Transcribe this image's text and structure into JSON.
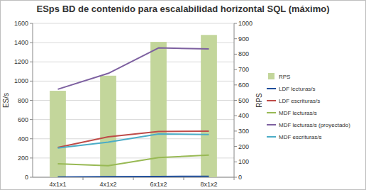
{
  "chart_data": {
    "type": "bar",
    "title": "ESps BD de contenido para escalabilidad horizontal SQL (máximo)",
    "y_label": "ES/s",
    "y2_label": "RPS",
    "categories": [
      "4x1x1",
      "4x1x2",
      "6x1x2",
      "8x1x2"
    ],
    "series": [
      {
        "name": "RPS",
        "type": "bar",
        "axis": "y2",
        "color": "#c3d69b",
        "values": [
          562,
          660,
          880,
          925
        ]
      },
      {
        "name": "LDF lecturas/s",
        "type": "line",
        "color": "#1f4e9a",
        "values": [
          2,
          5,
          8,
          10
        ]
      },
      {
        "name": "LDF escrituras/s",
        "type": "line",
        "color": "#be4b48",
        "values": [
          310,
          420,
          475,
          480
        ]
      },
      {
        "name": "MDF lecturas/s",
        "type": "line",
        "color": "#98b954",
        "values": [
          140,
          120,
          205,
          230
        ]
      },
      {
        "name": "MDF lecturas/s (proyectado)",
        "type": "line",
        "color": "#7d60a0",
        "values": [
          915,
          1080,
          1345,
          1335
        ]
      },
      {
        "name": "MDF escrituras/s",
        "type": "line",
        "color": "#4bacc6",
        "values": [
          305,
          365,
          450,
          445
        ]
      }
    ],
    "ylim": [
      0,
      1600
    ],
    "yticks": [
      0,
      200,
      400,
      600,
      800,
      1000,
      1200,
      1400,
      1600
    ],
    "y2lim": [
      0,
      1000
    ],
    "y2ticks": [
      0,
      100,
      200,
      300,
      400,
      500,
      600,
      700,
      800,
      900,
      1000
    ],
    "grid": true,
    "legend": "right"
  }
}
